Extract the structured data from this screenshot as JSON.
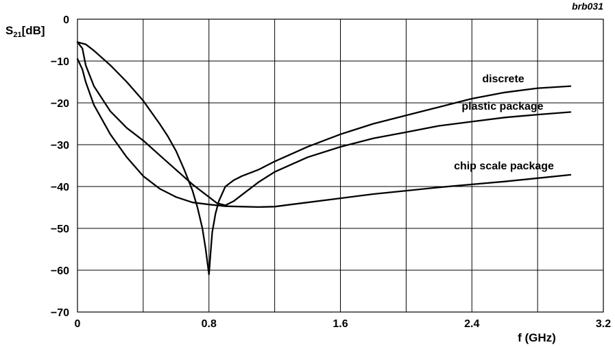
{
  "figure_code": "brb031",
  "chart_data": {
    "type": "line",
    "xlabel": "f (GHz)",
    "ylabel": {
      "main": "S",
      "sub": "21",
      "unit": "[dB]"
    },
    "xlim": [
      0,
      3.2
    ],
    "ylim": [
      -70,
      0
    ],
    "xticks": [
      0,
      0.4,
      0.8,
      1.2,
      1.6,
      2.0,
      2.4,
      2.8,
      3.2
    ],
    "xtick_labels": [
      "0",
      "",
      "0.8",
      "",
      "1.6",
      "",
      "2.4",
      "",
      "3.2"
    ],
    "yticks": [
      0,
      -10,
      -20,
      -30,
      -40,
      -50,
      -60,
      -70
    ],
    "ytick_labels": [
      "0",
      "−10",
      "−20",
      "−30",
      "−40",
      "−50",
      "−60",
      "−70"
    ],
    "grid": true,
    "series": [
      {
        "name": "discrete",
        "x": [
          0,
          0.05,
          0.1,
          0.2,
          0.3,
          0.4,
          0.5,
          0.55,
          0.6,
          0.65,
          0.7,
          0.73,
          0.76,
          0.78,
          0.79,
          0.8,
          0.81,
          0.82,
          0.84,
          0.86,
          0.9,
          0.95,
          1.0,
          1.1,
          1.2,
          1.4,
          1.6,
          1.8,
          2.0,
          2.2,
          2.4,
          2.6,
          2.8,
          3.0
        ],
        "y": [
          -5.5,
          -6,
          -7.5,
          -11,
          -15,
          -19.5,
          -25,
          -28,
          -31.5,
          -36,
          -41,
          -45,
          -50,
          -55,
          -58,
          -61,
          -56,
          -51,
          -46.5,
          -43.5,
          -40,
          -38.5,
          -37.5,
          -36,
          -34,
          -30.5,
          -27.5,
          -25,
          -23,
          -21,
          -19,
          -17.5,
          -16.5,
          -16
        ]
      },
      {
        "name": "plastic package",
        "x": [
          0,
          0.03,
          0.05,
          0.1,
          0.2,
          0.3,
          0.4,
          0.5,
          0.6,
          0.7,
          0.8,
          0.85,
          0.9,
          0.95,
          1.0,
          1.1,
          1.2,
          1.4,
          1.6,
          1.8,
          2.0,
          2.2,
          2.4,
          2.6,
          2.8,
          3.0
        ],
        "y": [
          -5.5,
          -7,
          -11,
          -16,
          -22,
          -26,
          -29,
          -32.5,
          -36,
          -39.5,
          -42.5,
          -44,
          -44.5,
          -43.5,
          -42,
          -39,
          -36.5,
          -33,
          -30.5,
          -28.5,
          -27,
          -25.5,
          -24.5,
          -23.5,
          -22.8,
          -22.2
        ]
      },
      {
        "name": "chip scale package",
        "x": [
          0,
          0.03,
          0.05,
          0.1,
          0.2,
          0.3,
          0.4,
          0.5,
          0.6,
          0.7,
          0.8,
          0.9,
          1.0,
          1.1,
          1.2,
          1.3,
          1.4,
          1.6,
          1.8,
          2.0,
          2.2,
          2.4,
          2.6,
          2.8,
          3.0
        ],
        "y": [
          -9.5,
          -12,
          -15,
          -20.5,
          -27.5,
          -33,
          -37.5,
          -40.5,
          -42.5,
          -43.8,
          -44.3,
          -44.7,
          -44.8,
          -44.9,
          -44.8,
          -44.3,
          -43.8,
          -42.8,
          -41.8,
          -41,
          -40.2,
          -39.5,
          -38.8,
          -38,
          -37.2
        ]
      }
    ],
    "annotations": [
      {
        "text": "discrete",
        "series": "discrete"
      },
      {
        "text": "plastic package",
        "series": "plastic package"
      },
      {
        "text": "chip scale package",
        "series": "chip scale package"
      }
    ]
  }
}
